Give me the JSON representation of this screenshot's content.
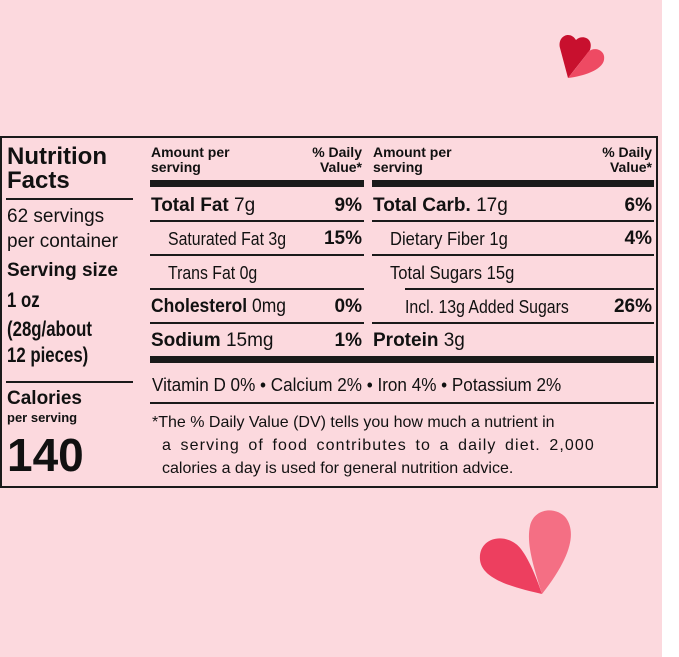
{
  "colors": {
    "background": "#fcd9de",
    "ink": "#1a1a1a",
    "heart_dark": "#c8102e",
    "heart_light": "#f0506a"
  },
  "decor": [
    "heart-top",
    "heart-bottom"
  ],
  "left": {
    "title_line1": "Nutrition",
    "title_line2": "Facts",
    "servings_line1": "62 servings",
    "servings_line2": "per container",
    "serving_size_label": "Serving size",
    "serving_size_line1": "1 oz",
    "serving_size_line2": "(28g/about",
    "serving_size_line3": "12 pieces)",
    "calories_label": "Calories",
    "calories_sub": "per serving",
    "calories_value": "140"
  },
  "col1": {
    "header_amount_line1": "Amount per",
    "header_amount_line2": "serving",
    "header_dv_line1": "% Daily",
    "header_dv_line2": "Value*",
    "rows": [
      {
        "name": "Total Fat",
        "amount": "7g",
        "dv": "9%"
      },
      {
        "name": "Saturated Fat",
        "amount": "3g",
        "dv": "15%"
      },
      {
        "name": "Trans Fat",
        "amount": "0g",
        "dv": ""
      },
      {
        "name": "Cholesterol",
        "amount": "0mg",
        "dv": "0%"
      },
      {
        "name": "Sodium",
        "amount": "15mg",
        "dv": "1%"
      }
    ]
  },
  "col2": {
    "header_amount_line1": "Amount per",
    "header_amount_line2": "serving",
    "header_dv_line1": "% Daily",
    "header_dv_line2": "Value*",
    "rows": [
      {
        "name": "Total Carb.",
        "amount": "17g",
        "dv": "6%"
      },
      {
        "name": "Dietary Fiber",
        "amount": "1g",
        "dv": "4%"
      },
      {
        "name": "Total Sugars",
        "amount": "15g",
        "dv": ""
      },
      {
        "name": "Incl. 13g Added Sugars",
        "amount": "",
        "dv": "26%"
      },
      {
        "name": "Protein",
        "amount": "3g",
        "dv": ""
      }
    ]
  },
  "vitamins": "Vitamin D 0% • Calcium 2% • Iron 4% • Potassium 2%",
  "footnote_line1": "*The % Daily Value (DV) tells you how much a nutrient in",
  "footnote_line2": "a serving of food contributes to a daily diet. 2,000",
  "footnote_line3": "calories a day is used for general nutrition advice."
}
